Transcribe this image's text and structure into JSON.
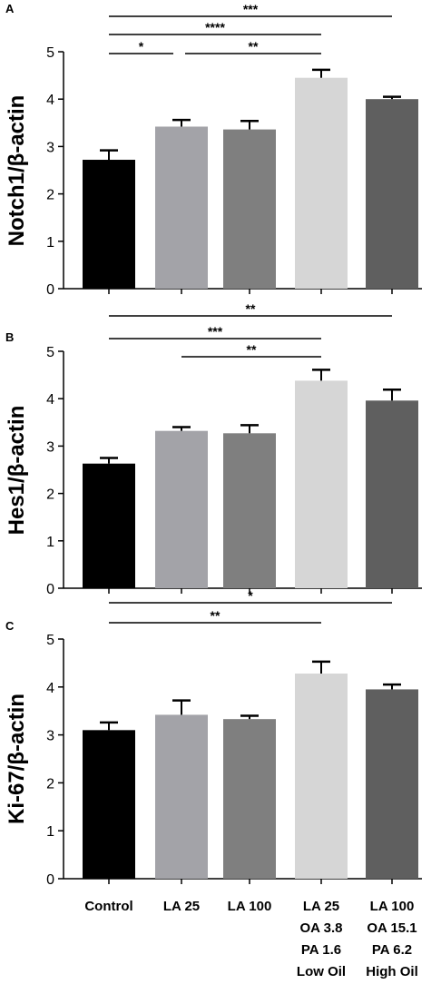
{
  "x_labels": [
    [
      "Control"
    ],
    [
      "LA 25"
    ],
    [
      "LA 100"
    ],
    [
      "LA 25",
      "OA 3.8",
      "PA 1.6",
      "Low Oil"
    ],
    [
      "LA 100",
      "OA 15.1",
      "PA 6.2",
      "High Oil"
    ]
  ],
  "bar_colors": [
    "#000000",
    "#a3a3a8",
    "#7f7f7f",
    "#d6d6d6",
    "#5f5f5f"
  ],
  "chart_data": [
    {
      "type": "bar",
      "panel": "A",
      "ylabel": "Notch1/β-actin",
      "ylim": [
        0,
        5
      ],
      "yticks": [
        0,
        1,
        2,
        3,
        4,
        5
      ],
      "categories": [
        "Control",
        "LA 25",
        "LA 100",
        "LA 25 OA 3.8 PA 1.6 Low Oil",
        "LA 100 OA 15.1 PA 6.2 High Oil"
      ],
      "values": [
        2.72,
        3.42,
        3.36,
        4.45,
        4.0
      ],
      "errors": [
        0.2,
        0.14,
        0.18,
        0.17,
        0.05
      ],
      "significance": [
        {
          "from": 0,
          "to": 4,
          "label": "***"
        },
        {
          "from": 0,
          "to": 3,
          "label": "****"
        },
        {
          "from": 0,
          "to": 1,
          "label": "*"
        },
        {
          "from": 1,
          "to": 3,
          "label": "**"
        }
      ]
    },
    {
      "type": "bar",
      "panel": "B",
      "ylabel": "Hes1/β-actin",
      "ylim": [
        0,
        5
      ],
      "yticks": [
        0,
        1,
        2,
        3,
        4,
        5
      ],
      "categories": [
        "Control",
        "LA 25",
        "LA 100",
        "LA 25 OA 3.8 PA 1.6 Low Oil",
        "LA 100 OA 15.1 PA 6.2 High Oil"
      ],
      "values": [
        2.63,
        3.32,
        3.27,
        4.38,
        3.96
      ],
      "errors": [
        0.12,
        0.08,
        0.17,
        0.23,
        0.23
      ],
      "significance": [
        {
          "from": 0,
          "to": 4,
          "label": "**"
        },
        {
          "from": 0,
          "to": 3,
          "label": "***"
        },
        {
          "from": 1,
          "to": 3,
          "label": "**"
        }
      ]
    },
    {
      "type": "bar",
      "panel": "C",
      "ylabel": "Ki-67/β-actin",
      "ylim": [
        0,
        5
      ],
      "yticks": [
        0,
        1,
        2,
        3,
        4,
        5
      ],
      "categories": [
        "Control",
        "LA 25",
        "LA 100",
        "LA 25 OA 3.8 PA 1.6 Low Oil",
        "LA 100 OA 15.1 PA 6.2 High Oil"
      ],
      "values": [
        3.1,
        3.42,
        3.33,
        4.28,
        3.95
      ],
      "errors": [
        0.16,
        0.3,
        0.07,
        0.25,
        0.1
      ],
      "significance": [
        {
          "from": 0,
          "to": 4,
          "label": "*"
        },
        {
          "from": 0,
          "to": 3,
          "label": "**"
        }
      ]
    }
  ]
}
